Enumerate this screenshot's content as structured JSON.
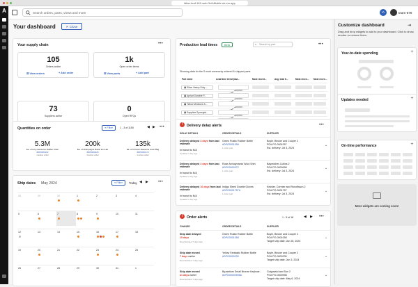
{
  "browser": {
    "url": "bitter-leaf-161-web-3c0dfbd6e-uk.run.app"
  },
  "nav": {
    "logo": "A"
  },
  "topbar": {
    "search_placeholder": "Search orders, parts, views and more",
    "user_initials": "IA",
    "user_name": "team-578"
  },
  "dashboard": {
    "title": "Your dashboard",
    "close_label": "Close"
  },
  "supply_chain": {
    "title": "Your supply chain",
    "tiles": [
      {
        "value": "105",
        "label": "Orders active",
        "link1": "View orders",
        "link2": "Add order"
      },
      {
        "value": "1k",
        "label": "Open order items",
        "link1": "View parts",
        "link2": "Add part"
      },
      {
        "value": "73",
        "label": "Suppliers active",
        "link1": "View suppliers",
        "link2": "Add supplier"
      },
      {
        "value": "0",
        "label": "Open RFQs",
        "link1": "View RFQs",
        "link2": "New RFQ"
      }
    ]
  },
  "qty": {
    "title": "Quantities on order",
    "filter": "Filter",
    "pager": "1 - 3 of 1150",
    "items": [
      {
        "value": "5.3M",
        "part": "Ea. of Ivory Awesome Rubber Chair",
        "pn": "#DP0000162",
        "orders": "1 active order"
      },
      {
        "value": "200k",
        "part": "Ea. of Champagne Rustic Iron Hat",
        "pn": "#DP0000225",
        "orders": "1 active order"
      },
      {
        "value": "135k",
        "part": "Ea. of Crimson Awesome Linen Bag",
        "pn": "#DP0000173",
        "orders": "1 active order"
      }
    ]
  },
  "ship": {
    "title": "Ship dates",
    "month": "May 2024",
    "filter": "Filter",
    "today": "Today",
    "rows": [
      [
        "28",
        "29",
        "30",
        "1",
        "2",
        "3",
        "4"
      ],
      [
        "5",
        "6",
        "7",
        "8",
        "9",
        "10",
        "11"
      ],
      [
        "12",
        "13",
        "14",
        "15",
        "16",
        "17",
        "18"
      ],
      [
        "19",
        "20",
        "21",
        "22",
        "23",
        "24",
        "25"
      ],
      [
        "26",
        "27",
        "28",
        "29",
        "30",
        "31",
        "1"
      ]
    ]
  },
  "lead": {
    "title": "Production lead times",
    "badge": "Beta",
    "search_placeholder": "Search by part",
    "caption": "Showing data for the 5 most commonly ordered & shipped parts",
    "columns": [
      "Part name",
      "Lead time trend (last...",
      "Most recent...",
      "Avg. lead ti...",
      "Most recen...",
      "Most recen..."
    ],
    "rows": [
      "Silver Heavy Duty ...",
      "Apricot Durable P...",
      "Yellow Mediocre A...",
      "Sapphire Synergist...",
      "Champagne Awes..."
    ]
  },
  "delay": {
    "title": "Delivery delay alerts",
    "columns": [
      "DELAY DETAILS",
      "ORDER DETAILS",
      "SUPPLIER"
    ],
    "rows": [
      {
        "prefix": "Delivery delayed",
        "days": "3 days",
        "suffix": "from last estimate",
        "status": "In transit to N/A",
        "updated": "Updated 1 day ago",
        "order": "Green Rustic Rubber Bottle",
        "order_id": "#DPO0001058",
        "order_more": "1 other part",
        "supplier": "Boyle, Becker and Cooper 2",
        "po": "PO# PO-0001057",
        "est": "Est. delivery: Jul 3, 2024"
      },
      {
        "prefix": "Delivery delayed",
        "days": "3 days",
        "suffix": "from last estimate",
        "status": "In transit to N/A",
        "updated": "Updated 1 day ago",
        "order": "Rose Aerodynamic Wool Shirt",
        "order_id": "#DPO0000372",
        "order_more": "1 other part",
        "supplier": "Bayreuther-Collins 2",
        "po": "PO# PO-0000998",
        "est": "Est. delivery: Jul 3, 2024"
      },
      {
        "prefix": "Delivery delayed",
        "days": "16 days",
        "suffix": "from last estimate",
        "status": "In transit to N/A",
        "updated": "Updated 1 day ago",
        "order": "Indigo Sleek Granite Gloves",
        "order_id": "#DPO0001757U",
        "order_more": "1 other part",
        "supplier": "Kessler, Cormier and Runolfsson 2",
        "po": "PO# PO-0001757",
        "est": "Est. delivery: Jul 3, 2024"
      }
    ]
  },
  "order_alerts": {
    "title": "Order alerts",
    "pager": "1 - 5 of 18",
    "columns": [
      "CHANGE",
      "ORDER DETAILS",
      "SUPPLIER"
    ],
    "rows": [
      {
        "change": "Ship date delayed",
        "days": "15 days",
        "note": "",
        "updated": "Rescheduled 7 days ago",
        "order": "Green Rustic Rubber Bottle",
        "order_id": "#DPO0001058",
        "supplier": "Boyle, Becker and Cooper 2",
        "po": "PO# PO-0001058",
        "target": "Target ship date: Jun 26, 2024"
      },
      {
        "change": "Ship date moved",
        "days": "7 days",
        "note": "earlier",
        "updated": "Rescheduled 7 days ago",
        "order": "Yellow Fantastic Rubber Bottle",
        "order_id": "#DPO0000230",
        "supplier": "Boyle, Becker and Cooper 2",
        "po": "PO# PO-0000230",
        "target": "Target ship date: Jun 3, 2024"
      },
      {
        "change": "Ship date moved",
        "days": "41 days",
        "note": "earlier",
        "updated": "Rescheduled 7 days ago",
        "order": "Byzantium Small Bronze Keyboar...",
        "order_id": "#DPO00000998U",
        "supplier": "Gulgowski and Son 2",
        "po": "PO# PO-0000998",
        "target": "Target ship date: May 6, 2024"
      }
    ]
  },
  "customize": {
    "title": "Customize dashboard",
    "subtitle": "Drag and drop widgets to add to your dashboard. Click to show, reorder or remove them.",
    "widgets": [
      "Year-to-date spending",
      "Updates needed",
      "On-time performance"
    ],
    "coming": "More widgets are coming soon!"
  },
  "colors": {
    "accent": "#2f5fb8",
    "alert": "#d93a2b",
    "orange": "#e8832a",
    "badge_green": "#2e8b57"
  }
}
